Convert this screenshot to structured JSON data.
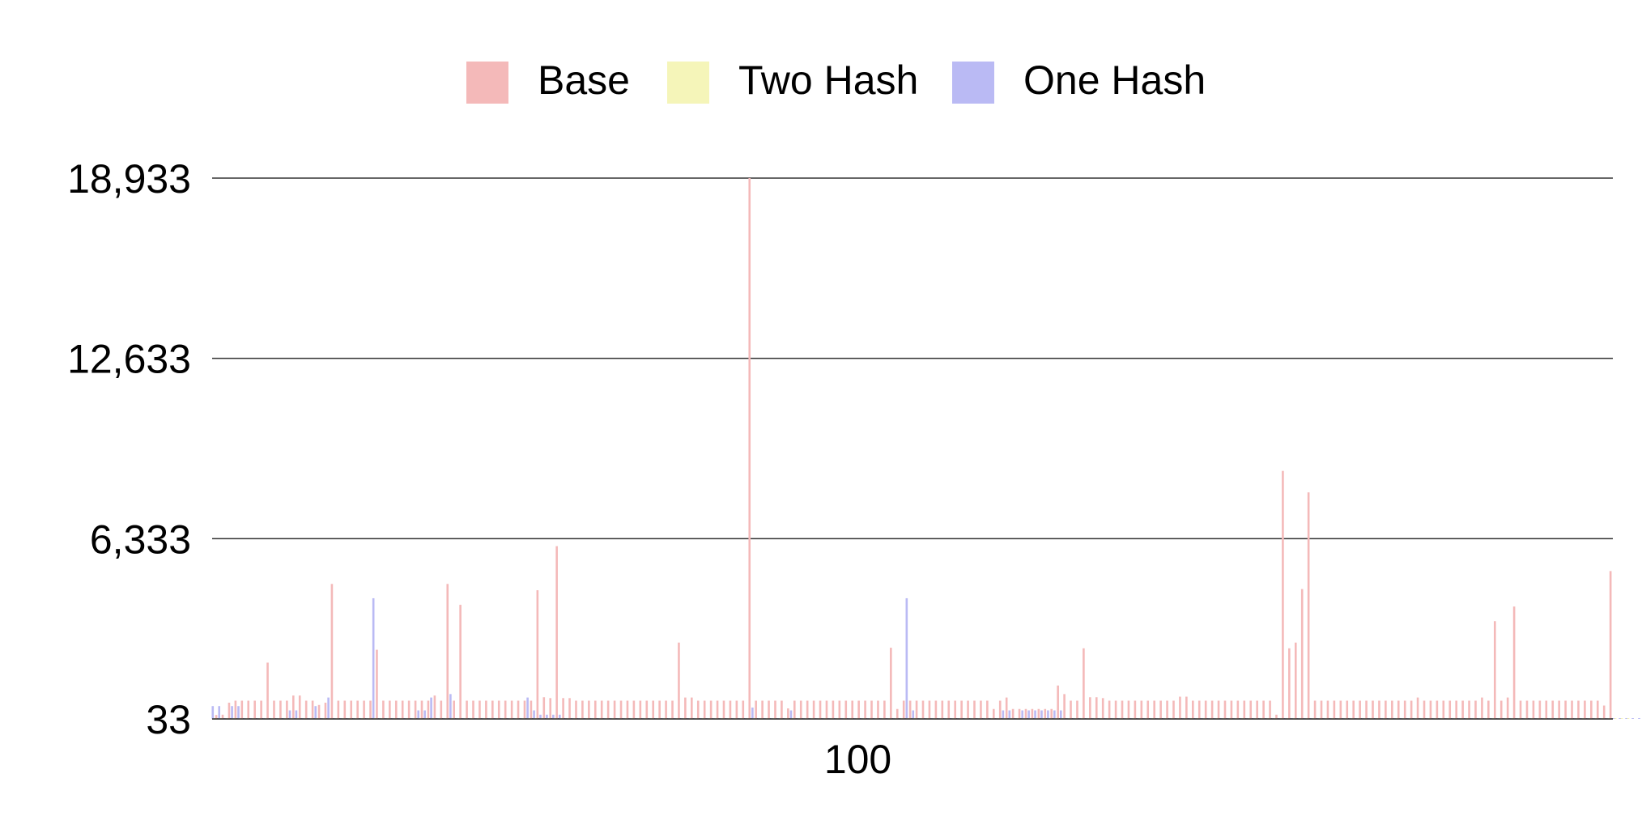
{
  "chart_data": {
    "type": "bar",
    "title": "",
    "xlabel": "",
    "ylabel": "",
    "ylim": [
      33,
      18933
    ],
    "yticks": [
      "33",
      "6,333",
      "12,633",
      "18,933"
    ],
    "ytick_values": [
      33,
      6333,
      12633,
      18933
    ],
    "xticks": [
      {
        "label": "100",
        "index": 100
      }
    ],
    "legend_position": "top-center",
    "grid": "horizontal",
    "series": [
      {
        "name": "Base",
        "color": "#f4b9b9",
        "values": [
          170,
          180,
          600,
          670,
          670,
          670,
          670,
          670,
          2000,
          670,
          670,
          670,
          850,
          850,
          670,
          670,
          520,
          600,
          4750,
          670,
          670,
          670,
          670,
          670,
          670,
          2450,
          670,
          670,
          670,
          670,
          670,
          670,
          670,
          670,
          850,
          670,
          4750,
          670,
          4020,
          670,
          670,
          670,
          670,
          670,
          670,
          670,
          670,
          670,
          670,
          670,
          4530,
          790,
          760,
          6070,
          760,
          760,
          670,
          670,
          670,
          670,
          670,
          670,
          670,
          670,
          670,
          670,
          670,
          670,
          670,
          670,
          670,
          670,
          2700,
          780,
          780,
          670,
          670,
          670,
          670,
          670,
          670,
          670,
          670,
          18933,
          670,
          670,
          670,
          670,
          670,
          400,
          670,
          670,
          670,
          670,
          670,
          670,
          670,
          670,
          670,
          670,
          670,
          670,
          670,
          670,
          670,
          2520,
          380,
          670,
          670,
          670,
          670,
          670,
          670,
          670,
          670,
          670,
          670,
          670,
          670,
          670,
          670,
          380,
          670,
          780,
          380,
          380,
          380,
          380,
          380,
          380,
          380,
          1200,
          900,
          670,
          670,
          2500,
          790,
          790,
          760,
          670,
          670,
          670,
          670,
          670,
          670,
          670,
          670,
          670,
          670,
          670,
          810,
          810,
          670,
          670,
          670,
          670,
          670,
          670,
          670,
          670,
          670,
          670,
          670,
          670,
          670,
          180,
          8700,
          2500,
          2700,
          4570,
          7950,
          670,
          670,
          670,
          670,
          670,
          670,
          670,
          670,
          670,
          670,
          670,
          670,
          670,
          670,
          670,
          670,
          780,
          670,
          670,
          670,
          670,
          670,
          670,
          670,
          670,
          670,
          780,
          670,
          3450,
          670,
          780,
          3960,
          670,
          670,
          670,
          670,
          670,
          670,
          670,
          670,
          670,
          670,
          670,
          670,
          670,
          500,
          5200
        ]
      },
      {
        "name": "Two Hash",
        "color": "#f5f5b9",
        "values": [
          60,
          60,
          60,
          60,
          60,
          60,
          60,
          60,
          60,
          60,
          60,
          60,
          60,
          60,
          60,
          60,
          60,
          60,
          60,
          60,
          60,
          60,
          60,
          60,
          60,
          60,
          60,
          60,
          60,
          60,
          60,
          60,
          60,
          60,
          60,
          60,
          60,
          60,
          60,
          60,
          60,
          60,
          60,
          60,
          60,
          60,
          60,
          60,
          60,
          60,
          60,
          60,
          60,
          60,
          60,
          60,
          60,
          60,
          60,
          60,
          60,
          60,
          60,
          60,
          60,
          60,
          60,
          60,
          60,
          60,
          60,
          60,
          60,
          60,
          60,
          60,
          60,
          60,
          60,
          60,
          60,
          60,
          60,
          60,
          60,
          60,
          60,
          60,
          60,
          60,
          60,
          60,
          60,
          60,
          60,
          60,
          60,
          60,
          60,
          60,
          60,
          60,
          60,
          60,
          60,
          60,
          60,
          60,
          60,
          60,
          60,
          60,
          60,
          60,
          60,
          60,
          60,
          60,
          60,
          60,
          60,
          60,
          60,
          60,
          60,
          60,
          60,
          60,
          60,
          60,
          60,
          60,
          60,
          60,
          60,
          60,
          60,
          60,
          60,
          60,
          60,
          60,
          60,
          60,
          60,
          60,
          60,
          60,
          60,
          60,
          60,
          60,
          60,
          60,
          60,
          60,
          60,
          60,
          60,
          60,
          60,
          60,
          60,
          60,
          60,
          60,
          60,
          60,
          60,
          60,
          60,
          60,
          60,
          60,
          60,
          60,
          60,
          60,
          60,
          60,
          60,
          60,
          60,
          60,
          60,
          60,
          60,
          60,
          60,
          60,
          60,
          60,
          60,
          60,
          60,
          60,
          60,
          60,
          60,
          60,
          60,
          60,
          60,
          60,
          60,
          60,
          60,
          60,
          60,
          60,
          60,
          60,
          60,
          60,
          60,
          60,
          60,
          60,
          60,
          60,
          60
        ]
      },
      {
        "name": "One Hash",
        "color": "#babaf4",
        "values": [
          480,
          480,
          60,
          480,
          480,
          60,
          60,
          60,
          60,
          60,
          60,
          60,
          330,
          330,
          60,
          60,
          480,
          60,
          780,
          60,
          60,
          60,
          60,
          60,
          60,
          4250,
          60,
          60,
          60,
          60,
          60,
          60,
          330,
          330,
          780,
          60,
          60,
          900,
          60,
          60,
          60,
          60,
          60,
          60,
          60,
          60,
          60,
          60,
          60,
          780,
          330,
          180,
          180,
          180,
          180,
          60,
          60,
          60,
          60,
          60,
          60,
          60,
          60,
          60,
          60,
          60,
          60,
          60,
          60,
          60,
          60,
          60,
          60,
          60,
          60,
          60,
          60,
          60,
          60,
          60,
          60,
          60,
          60,
          60,
          430,
          60,
          60,
          60,
          60,
          60,
          330,
          60,
          60,
          60,
          60,
          60,
          60,
          60,
          60,
          60,
          60,
          60,
          60,
          60,
          60,
          60,
          60,
          60,
          4250,
          330,
          60,
          60,
          60,
          60,
          60,
          60,
          60,
          60,
          60,
          60,
          60,
          60,
          60,
          330,
          330,
          60,
          330,
          330,
          330,
          330,
          330,
          330,
          330,
          60,
          60,
          60,
          60,
          60,
          60,
          60,
          60,
          60,
          60,
          60,
          60,
          60,
          60,
          60,
          60,
          60,
          60,
          60,
          60,
          60,
          60,
          60,
          60,
          60,
          60,
          60,
          60,
          60,
          60,
          60,
          60,
          60,
          60,
          60,
          60,
          60,
          60,
          60,
          60,
          60,
          60,
          60,
          60,
          60,
          60,
          60,
          60,
          60,
          60,
          60,
          60,
          60,
          60,
          60,
          60,
          60,
          60,
          60,
          60,
          60,
          60,
          60,
          60,
          60,
          60,
          60,
          60,
          60,
          60,
          60,
          60,
          60,
          60,
          60,
          60,
          60,
          60,
          60,
          60,
          60,
          60,
          60,
          60,
          60,
          60,
          60,
          60,
          60,
          60,
          60,
          60,
          60,
          60,
          60,
          60,
          60
        ]
      }
    ]
  }
}
